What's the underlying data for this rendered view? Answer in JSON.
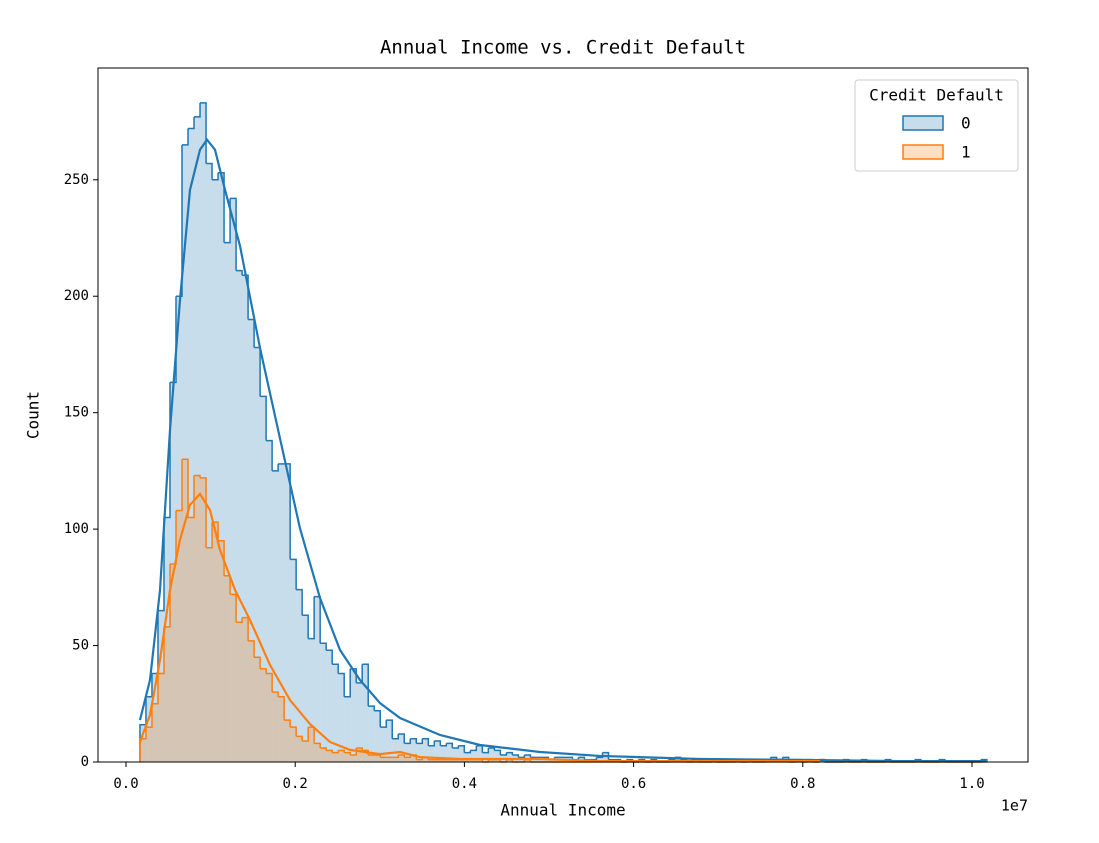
{
  "chart_data": {
    "type": "histogram",
    "title": "Annual Income vs. Credit Default",
    "x_label": "Annual Income",
    "y_label": "Count",
    "x_offset_label": "1e7",
    "legend_title": "Credit Default",
    "legend_position": "upper right",
    "xlim": [
      -331000,
      10662000
    ],
    "ylim": [
      0,
      298
    ],
    "xticks": [
      {
        "value": 0,
        "label": "0.0"
      },
      {
        "value": 2000000,
        "label": "0.2"
      },
      {
        "value": 4000000,
        "label": "0.4"
      },
      {
        "value": 6000000,
        "label": "0.6"
      },
      {
        "value": 8000000,
        "label": "0.8"
      },
      {
        "value": 10000000,
        "label": "1.0"
      }
    ],
    "yticks": [
      0,
      50,
      100,
      150,
      200,
      250
    ],
    "bins": [
      165000,
      236000,
      307000,
      378000,
      449000,
      520000,
      591000,
      662000,
      733000,
      804000,
      875000,
      946000,
      1017000,
      1088000,
      1159000,
      1230000,
      1301000,
      1372000,
      1443000,
      1514000,
      1585000,
      1656000,
      1727000,
      1798000,
      1869000,
      1940000,
      2011000,
      2082000,
      2153000,
      2224000,
      2295000,
      2366000,
      2437000,
      2508000,
      2579000,
      2650000,
      2721000,
      2792000,
      2863000,
      2934000,
      3005000,
      3076000,
      3147000,
      3218000,
      3289000,
      3360000,
      3431000,
      3502000,
      3573000,
      3644000,
      3715000,
      3786000,
      3857000,
      3928000,
      3999000,
      4070000,
      4141000,
      4212000,
      4283000,
      4354000,
      4425000,
      4496000,
      4567000,
      4638000,
      4709000,
      4780000,
      4851000,
      4922000,
      4993000,
      5064000,
      5135000,
      5206000,
      5277000,
      5348000,
      5419000,
      5490000,
      5561000,
      5632000,
      5703000,
      5774000,
      5845000,
      5916000,
      5987000,
      6058000,
      6129000,
      6200000,
      6271000,
      6342000,
      6413000,
      6484000,
      6555000,
      6626000,
      6697000,
      6768000,
      6839000,
      6910000,
      6981000,
      7052000,
      7123000,
      7194000,
      7265000,
      7336000,
      7407000,
      7478000,
      7549000,
      7620000,
      7691000,
      7762000,
      7833000,
      7904000,
      7975000,
      8046000,
      8117000,
      8188000,
      8259000,
      8330000,
      8401000,
      8472000,
      8543000,
      8614000,
      8685000,
      8756000,
      8827000,
      8898000,
      8969000,
      9040000,
      9111000,
      9182000,
      9253000,
      9324000,
      9395000,
      9466000,
      9537000,
      9608000,
      9679000,
      9750000,
      9821000,
      9892000,
      9963000,
      10034000,
      10105000,
      10176000
    ],
    "series": [
      {
        "name": "0",
        "color": "#1f77b4",
        "values": [
          16,
          28,
          38,
          65,
          105,
          163,
          200,
          265,
          272,
          277,
          283,
          257,
          250,
          253,
          223,
          242,
          211,
          209,
          190,
          178,
          157,
          138,
          125,
          128,
          128,
          87,
          74,
          63,
          53,
          71,
          51,
          48,
          42,
          38,
          28,
          40,
          34,
          42,
          24,
          22,
          15,
          18,
          10,
          12,
          8,
          10,
          8,
          10,
          7,
          9,
          7,
          8,
          6,
          7,
          4,
          5,
          7,
          4,
          6,
          5,
          3,
          4,
          3,
          2,
          3,
          2,
          2,
          2,
          1,
          2,
          2,
          2,
          1,
          2,
          1,
          1,
          2,
          4,
          1,
          1,
          0,
          1,
          0,
          1,
          0,
          1,
          0,
          0,
          1,
          2,
          1,
          0,
          1,
          0,
          0,
          1,
          0,
          0,
          0,
          1,
          0,
          1,
          0,
          0,
          1,
          2,
          1,
          2,
          0,
          1,
          0,
          1,
          0,
          1,
          0,
          0,
          0,
          1,
          0,
          0,
          1,
          0,
          0,
          0,
          1,
          0,
          0,
          0,
          0,
          1,
          0,
          0,
          0,
          1,
          0,
          0,
          0,
          0,
          0,
          0,
          1
        ],
        "kde": {
          "x": [
            165000,
            283700,
            401900,
            520100,
            638300,
            756500,
            874700,
            957400,
            1052000,
            1170200,
            1347500,
            1583900,
            1820300,
            2056700,
            2293100,
            2529600,
            2766000,
            3002400,
            3238800,
            3711600,
            4184400,
            4893600,
            5602800,
            6784900,
            7966900,
            9149000,
            10165500
          ],
          "y": [
            18.0,
            35.2,
            73.8,
            142.6,
            198.5,
            245.7,
            262.9,
            267.2,
            262.9,
            245.7,
            221.6,
            177.8,
            138.9,
            100.3,
            70.4,
            48.1,
            35.2,
            25.3,
            18.9,
            11.6,
            7.3,
            4.3,
            2.6,
            1.3,
            0.9,
            0.4,
            0.4
          ]
        }
      },
      {
        "name": "1",
        "color": "#ff7f0e",
        "values": [
          10,
          15,
          25,
          38,
          58,
          85,
          108,
          130,
          105,
          123,
          122,
          92,
          103,
          95,
          80,
          72,
          60,
          62,
          52,
          45,
          40,
          38,
          30,
          28,
          18,
          15,
          11,
          9,
          15,
          8,
          6,
          5,
          4,
          5,
          4,
          3,
          6,
          5,
          3,
          3,
          2,
          2,
          2,
          3,
          2,
          3,
          1,
          2,
          1,
          1,
          1,
          1,
          1,
          1,
          1,
          1,
          1,
          0,
          1,
          1,
          0,
          1,
          0,
          0,
          1,
          0,
          0,
          0,
          0,
          0,
          0,
          0,
          0,
          0,
          0,
          0,
          0,
          0,
          0,
          0,
          0,
          0,
          0,
          0,
          0,
          0,
          0,
          0,
          0,
          0,
          0,
          0,
          0,
          0,
          0,
          0,
          0,
          0,
          0,
          0,
          0,
          0,
          0,
          0,
          0,
          0,
          0,
          0,
          0,
          0,
          0,
          0,
          0,
          1,
          0,
          0,
          0,
          0,
          0,
          0,
          0,
          0,
          0,
          0,
          0,
          0,
          0,
          0,
          0,
          0,
          0,
          0,
          0,
          0,
          0,
          0,
          0,
          0,
          0,
          0,
          0
        ],
        "kde": {
          "x": [
            165000,
            283700,
            401900,
            520100,
            638300,
            756500,
            874700,
            992900,
            1111100,
            1288400,
            1465700,
            1702100,
            1938500,
            2175000,
            2411300,
            2647800,
            3002400,
            3238800,
            3475200,
            3948000,
            4893600,
            5602800,
            6784900,
            8203300
          ],
          "y": [
            8.6,
            20.2,
            43.8,
            73.9,
            95.4,
            110.4,
            115.1,
            108.2,
            91.1,
            73.9,
            61.0,
            41.7,
            26.6,
            16.3,
            8.6,
            5.2,
            3.4,
            4.3,
            2.1,
            1.3,
            1.3,
            0.4,
            0.4,
            0.4
          ]
        }
      }
    ]
  }
}
